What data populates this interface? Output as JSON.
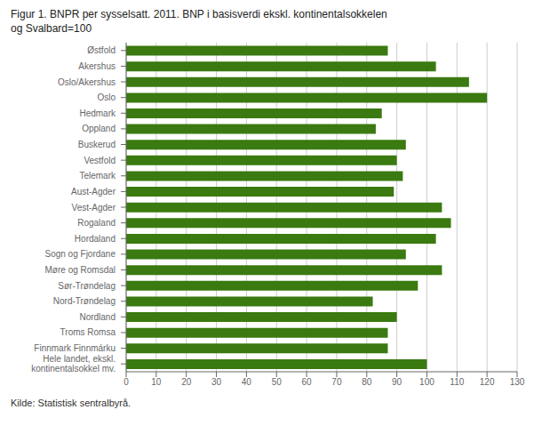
{
  "chart_data": {
    "type": "bar",
    "orientation": "horizontal",
    "title": "Figur 1. BNPR per sysselsatt. 2011. BNP i basisverdi ekskl. kontinentalsokkelen\nog Svalbard=100",
    "annotations": [
      "Kilde: Statistisk sentralbyrå."
    ],
    "categories": [
      "Østfold",
      "Akershus",
      "Oslo/Akershus",
      "Oslo",
      "Hedmark",
      "Oppland",
      "Buskerud",
      "Vestfold",
      "Telemark",
      "Aust-Agder",
      "Vest-Agder",
      "Rogaland",
      "Hordaland",
      "Sogn og Fjordane",
      "Møre og Romsdal",
      "Sør-Trøndelag",
      "Nord-Trøndelag",
      "Nordland",
      "Troms Romsa",
      "Finnmark Finnmárku",
      "Hele landet, ekskl.\nkontinentalsokkel mv."
    ],
    "values": [
      87,
      103,
      114,
      120,
      85,
      83,
      93,
      90,
      92,
      89,
      105,
      108,
      103,
      93,
      105,
      97,
      82,
      90,
      87,
      87,
      100
    ],
    "color": "#3a7a10",
    "xlim": [
      0,
      130
    ],
    "xticks": [
      0,
      10,
      20,
      30,
      40,
      50,
      60,
      70,
      80,
      90,
      100,
      110,
      120,
      130
    ],
    "grid": true
  }
}
